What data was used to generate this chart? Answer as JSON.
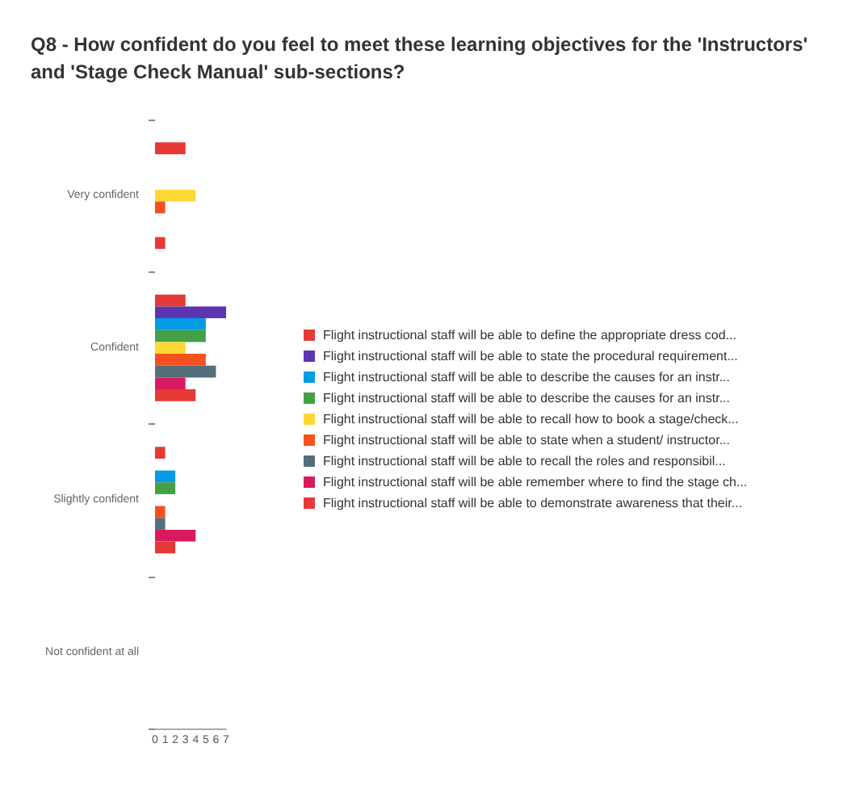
{
  "chart_data": {
    "type": "bar",
    "orientation": "horizontal",
    "title": "Q8 - How confident do you feel to meet these learning objectives for the 'Instructors' and 'Stage Check Manual' sub-sections?",
    "categories": [
      "Very confident",
      "Confident",
      "Slightly confident",
      "Not confident at all"
    ],
    "series": [
      {
        "name": "Flight instructional staff will be able to define the appropriate dress cod...",
        "color": "#e53935",
        "values": [
          3,
          3,
          1,
          0
        ]
      },
      {
        "name": "Flight instructional staff will be able to state the procedural requirement...",
        "color": "#5e35b1",
        "values": [
          0,
          7,
          0,
          0
        ]
      },
      {
        "name": "Flight instructional staff will be able to describe the causes for an instr...",
        "color": "#039be5",
        "values": [
          0,
          5,
          2,
          0
        ]
      },
      {
        "name": "Flight instructional staff will be able to describe the causes for an instr...",
        "color": "#43a047",
        "values": [
          0,
          5,
          2,
          0
        ]
      },
      {
        "name": "Flight instructional staff will be able to recall how to book a stage/check...",
        "color": "#fdd835",
        "values": [
          4,
          3,
          0,
          0
        ]
      },
      {
        "name": "Flight instructional staff will be able to state when a student/ instructor...",
        "color": "#f4511e",
        "values": [
          1,
          5,
          1,
          0
        ]
      },
      {
        "name": "Flight instructional staff will be able to recall the roles and responsibil...",
        "color": "#546e7a",
        "values": [
          0,
          6,
          1,
          0
        ]
      },
      {
        "name": "Flight instructional staff will be able remember where to find the stage ch...",
        "color": "#d81b60",
        "values": [
          0,
          3,
          4,
          0
        ]
      },
      {
        "name": "Flight instructional staff will be able to demonstrate awareness that their...",
        "color": "#e53935",
        "values": [
          1,
          4,
          2,
          0
        ]
      }
    ],
    "xlim": [
      0,
      7
    ],
    "xticks": [
      0,
      1,
      2,
      3,
      4,
      5,
      6,
      7
    ],
    "grid": false,
    "legend": "right"
  }
}
